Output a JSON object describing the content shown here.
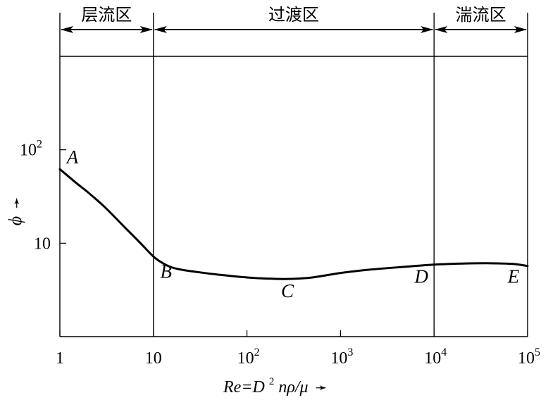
{
  "chart_data": {
    "type": "line",
    "x_scale": "log",
    "y_scale": "log",
    "xlim": [
      1,
      100000
    ],
    "ylim": [
      1,
      1000
    ],
    "grid": false,
    "x_ticks": [
      {
        "value": 1,
        "label": "1",
        "sup": ""
      },
      {
        "value": 10,
        "label": "10",
        "sup": ""
      },
      {
        "value": 100,
        "label": "10",
        "sup": "2"
      },
      {
        "value": 1000,
        "label": "10",
        "sup": "3"
      },
      {
        "value": 10000,
        "label": "10",
        "sup": "4"
      },
      {
        "value": 100000,
        "label": "10",
        "sup": "5"
      }
    ],
    "y_ticks": [
      {
        "value": 10,
        "label": "10",
        "sup": ""
      },
      {
        "value": 100,
        "label": "10",
        "sup": "2"
      }
    ],
    "xlabel": {
      "pre": "Re=D",
      "sup": "2",
      "post": "nρ/μ",
      "arrow": "➛"
    },
    "ylabel": {
      "text": "ϕ",
      "arrow": "➛"
    },
    "regions": [
      {
        "label": "层流区",
        "x_range": [
          1,
          10
        ]
      },
      {
        "label": "过渡区",
        "x_range": [
          10,
          10000
        ]
      },
      {
        "label": "湍流区",
        "x_range": [
          10000,
          100000
        ]
      }
    ],
    "series": [
      {
        "x": [
          1,
          1.5,
          2,
          3,
          5,
          7,
          10,
          12,
          15,
          20,
          30,
          50,
          100,
          200,
          300,
          500,
          1000,
          2000,
          5000,
          10000,
          20000,
          40000,
          70000,
          100000
        ],
        "y": [
          62,
          44,
          35,
          24.5,
          14.6,
          10.4,
          7.2,
          6.3,
          5.6,
          5.2,
          4.9,
          4.6,
          4.3,
          4.15,
          4.15,
          4.3,
          4.8,
          5.2,
          5.6,
          5.9,
          6.05,
          6.1,
          6.0,
          5.7
        ]
      }
    ],
    "points": [
      {
        "label": "A",
        "x": 1,
        "y": 62
      },
      {
        "label": "B",
        "x": 10,
        "y": 7.2
      },
      {
        "label": "C",
        "x": 300,
        "y": 4.15
      },
      {
        "label": "D",
        "x": 10000,
        "y": 5.9
      },
      {
        "label": "E",
        "x": 100000,
        "y": 5.7
      }
    ]
  }
}
